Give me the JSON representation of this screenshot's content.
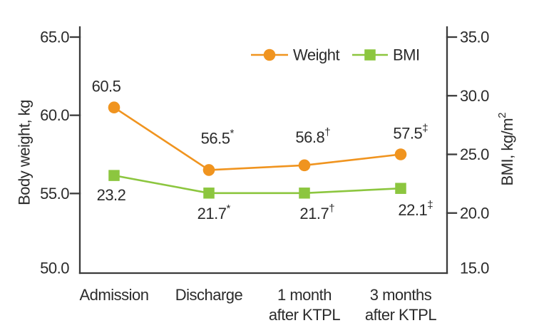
{
  "chart_data": {
    "type": "line",
    "title": "",
    "categories": [
      [
        "Admission"
      ],
      [
        "Discharge"
      ],
      [
        "1 month",
        "after KTPL"
      ],
      [
        "3 months",
        "after KTPL"
      ]
    ],
    "series": [
      {
        "name": "Weight",
        "axis": "left",
        "marker": "circle",
        "color": "#F0941F",
        "values": [
          60.5,
          56.5,
          56.8,
          57.5
        ],
        "point_labels": [
          {
            "text": "60.5",
            "sup": ""
          },
          {
            "text": "56.5",
            "sup": "*"
          },
          {
            "text": "56.8",
            "sup": "†"
          },
          {
            "text": "57.5",
            "sup": "‡"
          }
        ]
      },
      {
        "name": "BMI",
        "axis": "right",
        "marker": "square",
        "color": "#8CC63F",
        "values": [
          23.2,
          21.7,
          21.7,
          22.1
        ],
        "point_labels": [
          {
            "text": "23.2",
            "sup": ""
          },
          {
            "text": "21.7",
            "sup": "*"
          },
          {
            "text": "21.7",
            "sup": "†"
          },
          {
            "text": "22.1",
            "sup": "‡"
          }
        ]
      }
    ],
    "left_axis": {
      "title": "Body weight, kg",
      "min": 50,
      "max": 65,
      "ticks": [
        {
          "value": 65,
          "label": "65.0"
        },
        {
          "value": 60,
          "label": "60.0"
        },
        {
          "value": 55,
          "label": "55.0"
        },
        {
          "value": 50,
          "label": "50.0"
        }
      ]
    },
    "right_axis": {
      "title_main": "BMI, kg/m",
      "title_sup": "2",
      "min": 15,
      "max": 35,
      "ticks": [
        {
          "value": 35,
          "label": "35.0"
        },
        {
          "value": 30,
          "label": "30.0"
        },
        {
          "value": 25,
          "label": "25.0"
        },
        {
          "value": 20,
          "label": "20.0"
        },
        {
          "value": 15,
          "label": "15.0"
        }
      ]
    },
    "legend": {
      "position": "top-center",
      "items": [
        {
          "label": "Weight",
          "color": "#F0941F",
          "marker": "circle"
        },
        {
          "label": "BMI",
          "color": "#8CC63F",
          "marker": "square"
        }
      ]
    },
    "colors": {
      "axis": "#3b3b3b",
      "text": "#2b2b2b",
      "background": "#ffffff"
    },
    "grid": false
  }
}
